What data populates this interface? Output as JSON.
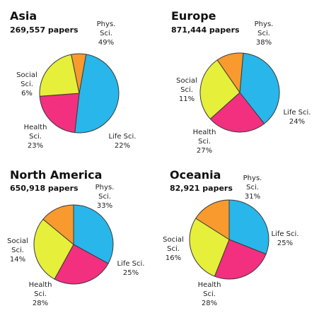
{
  "chart_data": [
    {
      "type": "pie",
      "title": "Asia",
      "subtitle": "269,557 papers",
      "slices": [
        {
          "name": "Phys. Sci.",
          "lines": [
            "Phys.",
            "Sci.",
            "49%"
          ],
          "value": 49,
          "color": "#29b6ea"
        },
        {
          "name": "Life Sci.",
          "lines": [
            "Life Sci.",
            "22%"
          ],
          "value": 22,
          "color": "#f2307f"
        },
        {
          "name": "Health Sci.",
          "lines": [
            "Health",
            "Sci.",
            "23%"
          ],
          "value": 23,
          "color": "#e6ef3a"
        },
        {
          "name": "Social Sci.",
          "lines": [
            "Social",
            "Sci.",
            "6%"
          ],
          "value": 6,
          "color": "#f89a2e"
        }
      ]
    },
    {
      "type": "pie",
      "title": "Europe",
      "subtitle": "871,444 papers",
      "slices": [
        {
          "name": "Phys. Sci.",
          "lines": [
            "Phys.",
            "Sci.",
            "38%"
          ],
          "value": 38,
          "color": "#29b6ea"
        },
        {
          "name": "Life Sci.",
          "lines": [
            "Life Sci.",
            "24%"
          ],
          "value": 24,
          "color": "#f2307f"
        },
        {
          "name": "Health Sci.",
          "lines": [
            "Health",
            "Sci.",
            "27%"
          ],
          "value": 27,
          "color": "#e6ef3a"
        },
        {
          "name": "Social Sci.",
          "lines": [
            "Social",
            "Sci.",
            "11%"
          ],
          "value": 11,
          "color": "#f89a2e"
        }
      ]
    },
    {
      "type": "pie",
      "title": "North America",
      "subtitle": "650,918 papers",
      "slices": [
        {
          "name": "Phys. Sci.",
          "lines": [
            "Phys.",
            "Sci.",
            "33%"
          ],
          "value": 33,
          "color": "#29b6ea"
        },
        {
          "name": "Life Sci.",
          "lines": [
            "Life Sci.",
            "25%"
          ],
          "value": 25,
          "color": "#f2307f"
        },
        {
          "name": "Health Sci.",
          "lines": [
            "Health",
            "Sci.",
            "28%"
          ],
          "value": 28,
          "color": "#e6ef3a"
        },
        {
          "name": "Social Sci.",
          "lines": [
            "Social",
            "Sci.",
            "14%"
          ],
          "value": 14,
          "color": "#f89a2e"
        }
      ]
    },
    {
      "type": "pie",
      "title": "Oceania",
      "subtitle": "82,921 papers",
      "slices": [
        {
          "name": "Phys. Sci.",
          "lines": [
            "Phys.",
            "Sci.",
            "31%"
          ],
          "value": 31,
          "color": "#29b6ea"
        },
        {
          "name": "Life Sci.",
          "lines": [
            "Life Sci.",
            "25%"
          ],
          "value": 25,
          "color": "#f2307f"
        },
        {
          "name": "Health Sci.",
          "lines": [
            "Health",
            "Sci.",
            "28%"
          ],
          "value": 28,
          "color": "#e6ef3a"
        },
        {
          "name": "Social Sci.",
          "lines": [
            "Social",
            "Sci.",
            "16%"
          ],
          "value": 16,
          "color": "#f89a2e"
        }
      ]
    }
  ]
}
